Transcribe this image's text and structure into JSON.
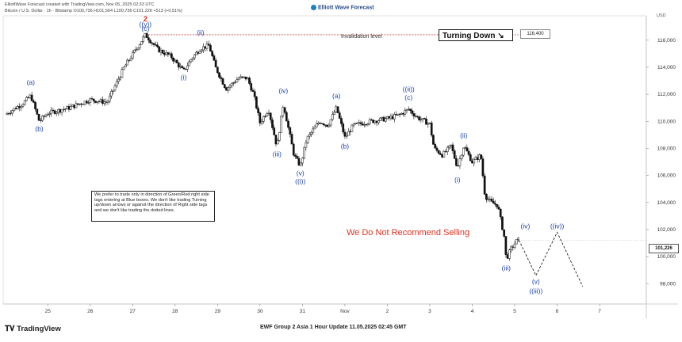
{
  "header": {
    "line1": "ElliottWave Forecast created with TradingView.com, Nov 05, 2025 02:33 UTC",
    "line2": "Bitcoin / U.S. Dollar · 1h · Bitstamp  O100,736  H101,564  L100,736  C101,226  +513 (+0.51%)"
  },
  "brand": "Elliott Wave Forecast",
  "turning_down": "Turning Down",
  "turning_down_icon": "arrow-down-right-icon",
  "invalidation_label": "Invalidation level",
  "invalidation_price": "116,400",
  "current_price": "101,226",
  "currency": "USD",
  "note": "We prefer to trade only in direction of Green/Red right side tags entering at Blue boxes. We don't like trading Turning up/down arrows or against the direction of Right side tags and we don't like trading the dotted lines.",
  "warning": "We Do Not Recommend Selling",
  "footer_title": "EWF Group 2 Asia 1 Hour Update 11.05.2025 02:45 GMT",
  "tv_logo": "TradingView",
  "tv_logo_icon": "tradingview-logo-icon",
  "colors": {
    "wave_label": "#1a3fb0",
    "red_label": "#e03020",
    "candle": "#111111",
    "invalidation": "#d05050"
  },
  "chart_data": {
    "type": "candlestick",
    "ylim": [
      96500,
      117800
    ],
    "yticks": [
      98000,
      100000,
      102000,
      104000,
      106000,
      108000,
      110000,
      112000,
      114000,
      116000
    ],
    "ytick_labels": [
      "98,000",
      "100,000",
      "102,000",
      "104,000",
      "106,000",
      "108,000",
      "110,000",
      "112,000",
      "114,000",
      "116,000"
    ],
    "xticks": [
      {
        "label": "25",
        "day": 25
      },
      {
        "label": "26",
        "day": 26
      },
      {
        "label": "27",
        "day": 27
      },
      {
        "label": "28",
        "day": 28
      },
      {
        "label": "29",
        "day": 29
      },
      {
        "label": "30",
        "day": 30
      },
      {
        "label": "31",
        "day": 31
      },
      {
        "label": "Nov",
        "day": 32
      },
      {
        "label": "2",
        "day": 33
      },
      {
        "label": "3",
        "day": 34
      },
      {
        "label": "4",
        "day": 35
      },
      {
        "label": "5",
        "day": 36
      },
      {
        "label": "6",
        "day": 37
      },
      {
        "label": "7",
        "day": 38
      }
    ],
    "price_path": [
      [
        24.0,
        110500
      ],
      [
        24.4,
        111300
      ],
      [
        24.6,
        111900
      ],
      [
        24.8,
        110000
      ],
      [
        25.0,
        110600
      ],
      [
        25.5,
        111000
      ],
      [
        26.0,
        111600
      ],
      [
        26.4,
        111400
      ],
      [
        26.8,
        114000
      ],
      [
        27.3,
        116400
      ],
      [
        27.6,
        115300
      ],
      [
        27.9,
        114800
      ],
      [
        28.2,
        113700
      ],
      [
        28.4,
        114700
      ],
      [
        28.6,
        115400
      ],
      [
        28.8,
        115600
      ],
      [
        28.95,
        114000
      ],
      [
        29.2,
        112400
      ],
      [
        29.5,
        113200
      ],
      [
        29.7,
        113200
      ],
      [
        29.85,
        112000
      ],
      [
        30.0,
        109900
      ],
      [
        30.2,
        110900
      ],
      [
        30.4,
        108100
      ],
      [
        30.55,
        111300
      ],
      [
        30.8,
        107500
      ],
      [
        30.95,
        106700
      ],
      [
        31.1,
        108700
      ],
      [
        31.4,
        110000
      ],
      [
        31.6,
        109700
      ],
      [
        31.8,
        111000
      ],
      [
        32.0,
        108800
      ],
      [
        32.2,
        109700
      ],
      [
        32.6,
        110000
      ],
      [
        33.0,
        110200
      ],
      [
        33.3,
        110500
      ],
      [
        33.5,
        110900
      ],
      [
        33.7,
        110300
      ],
      [
        34.0,
        109800
      ],
      [
        34.1,
        108000
      ],
      [
        34.3,
        107500
      ],
      [
        34.5,
        108200
      ],
      [
        34.65,
        106600
      ],
      [
        34.8,
        108200
      ],
      [
        35.0,
        107000
      ],
      [
        35.2,
        107500
      ],
      [
        35.3,
        104500
      ],
      [
        35.45,
        104000
      ],
      [
        35.6,
        103800
      ],
      [
        35.75,
        101500
      ],
      [
        35.8,
        99800
      ],
      [
        35.9,
        100500
      ],
      [
        36.05,
        101200
      ],
      [
        36.1,
        101226
      ]
    ],
    "projection": [
      [
        36.1,
        101226
      ],
      [
        36.5,
        98600
      ],
      [
        37.0,
        101800
      ],
      [
        37.6,
        97800
      ]
    ],
    "invalidation_level": 116400,
    "invalidation_range": [
      27.3,
      39.1
    ],
    "wave_labels": [
      {
        "text": "(a)",
        "day": 24.6,
        "y": 112700,
        "color": "blue"
      },
      {
        "text": "(b)",
        "day": 24.8,
        "y": 109300,
        "color": "blue"
      },
      {
        "text": "2",
        "day": 27.3,
        "y": 117400,
        "color": "red"
      },
      {
        "text": "((y))",
        "day": 27.3,
        "y": 117000,
        "color": "blue"
      },
      {
        "text": "(c)",
        "day": 27.3,
        "y": 116700,
        "color": "blue"
      },
      {
        "text": "(ii)",
        "day": 28.6,
        "y": 116400,
        "color": "blue"
      },
      {
        "text": "(i)",
        "day": 28.2,
        "y": 113100,
        "color": "blue"
      },
      {
        "text": "(iv)",
        "day": 30.55,
        "y": 112100,
        "color": "blue"
      },
      {
        "text": "(iii)",
        "day": 30.4,
        "y": 107400,
        "color": "blue"
      },
      {
        "text": "(v)",
        "day": 30.95,
        "y": 106000,
        "color": "blue"
      },
      {
        "text": "((i))",
        "day": 30.95,
        "y": 105400,
        "color": "blue"
      },
      {
        "text": "(a)",
        "day": 31.8,
        "y": 111700,
        "color": "blue"
      },
      {
        "text": "(b)",
        "day": 32.0,
        "y": 108000,
        "color": "blue"
      },
      {
        "text": "((ii))",
        "day": 33.5,
        "y": 112200,
        "color": "blue"
      },
      {
        "text": "(c)",
        "day": 33.5,
        "y": 111600,
        "color": "blue"
      },
      {
        "text": "(ii)",
        "day": 34.8,
        "y": 108800,
        "color": "blue"
      },
      {
        "text": "(i)",
        "day": 34.65,
        "y": 105500,
        "color": "blue"
      },
      {
        "text": "(iii)",
        "day": 35.8,
        "y": 99000,
        "color": "blue"
      },
      {
        "text": "(iv)",
        "day": 36.25,
        "y": 102100,
        "color": "blue"
      },
      {
        "text": "(v)",
        "day": 36.5,
        "y": 98000,
        "color": "blue"
      },
      {
        "text": "((iii))",
        "day": 36.5,
        "y": 97300,
        "color": "blue"
      },
      {
        "text": "((iv))",
        "day": 37.0,
        "y": 102100,
        "color": "blue"
      }
    ]
  }
}
